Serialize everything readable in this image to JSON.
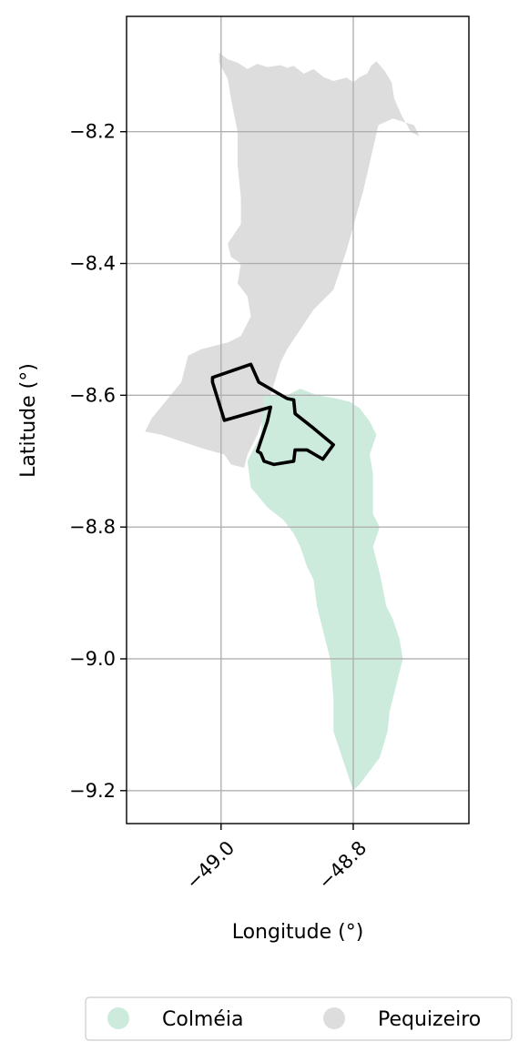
{
  "map": {
    "xlabel": "Longitude (°)",
    "ylabel": "Latitude (°)",
    "x_ticks": [
      {
        "value": -49.0,
        "label": "−49.0"
      },
      {
        "value": -48.8,
        "label": "−48.8"
      }
    ],
    "y_ticks": [
      {
        "value": -8.2,
        "label": "−8.2"
      },
      {
        "value": -8.4,
        "label": "−8.4"
      },
      {
        "value": -8.6,
        "label": "−8.6"
      },
      {
        "value": -8.8,
        "label": "−8.8"
      },
      {
        "value": -9.0,
        "label": "−9.0"
      },
      {
        "value": -9.2,
        "label": "−9.2"
      }
    ],
    "xlim": [
      -49.143,
      -48.625
    ],
    "ylim": [
      -9.25,
      -8.025
    ],
    "grid": true,
    "legend_position": "bottom-center",
    "legend": [
      {
        "label": "Colméia",
        "color": "#cdebdd"
      },
      {
        "label": "Pequizeiro",
        "color": "#dddddd"
      }
    ],
    "colors": {
      "colmeia": "#cdebdd",
      "pequizeiro": "#dddddd",
      "outline": "#000000",
      "grid": "#b0b0b0"
    }
  },
  "chart_data": {
    "type": "map",
    "xlabel": "Longitude (°)",
    "ylabel": "Latitude (°)",
    "xlim": [
      -49.143,
      -48.625
    ],
    "ylim": [
      -9.25,
      -8.025
    ],
    "series": [
      {
        "name": "Pequizeiro",
        "color": "#dddddd",
        "polygon": [
          [
            -49.003,
            -8.08
          ],
          [
            -48.99,
            -8.09
          ],
          [
            -48.975,
            -8.095
          ],
          [
            -48.96,
            -8.105
          ],
          [
            -48.945,
            -8.097
          ],
          [
            -48.93,
            -8.102
          ],
          [
            -48.91,
            -8.099
          ],
          [
            -48.9,
            -8.103
          ],
          [
            -48.89,
            -8.1
          ],
          [
            -48.875,
            -8.112
          ],
          [
            -48.86,
            -8.105
          ],
          [
            -48.845,
            -8.117
          ],
          [
            -48.83,
            -8.123
          ],
          [
            -48.81,
            -8.118
          ],
          [
            -48.8,
            -8.125
          ],
          [
            -48.79,
            -8.117
          ],
          [
            -48.779,
            -8.112
          ],
          [
            -48.773,
            -8.1
          ],
          [
            -48.765,
            -8.093
          ],
          [
            -48.753,
            -8.107
          ],
          [
            -48.742,
            -8.125
          ],
          [
            -48.738,
            -8.15
          ],
          [
            -48.727,
            -8.175
          ],
          [
            -48.713,
            -8.2
          ],
          [
            -48.7,
            -8.207
          ],
          [
            -48.708,
            -8.19
          ],
          [
            -48.74,
            -8.18
          ],
          [
            -48.762,
            -8.19
          ],
          [
            -48.785,
            -8.29
          ],
          [
            -48.81,
            -8.38
          ],
          [
            -48.83,
            -8.44
          ],
          [
            -48.86,
            -8.47
          ],
          [
            -48.88,
            -8.5
          ],
          [
            -48.9,
            -8.53
          ],
          [
            -48.91,
            -8.55
          ],
          [
            -48.925,
            -8.6
          ],
          [
            -48.935,
            -8.63
          ],
          [
            -48.945,
            -8.66
          ],
          [
            -48.96,
            -8.69
          ],
          [
            -48.965,
            -8.71
          ],
          [
            -48.985,
            -8.705
          ],
          [
            -48.995,
            -8.69
          ],
          [
            -49.03,
            -8.68
          ],
          [
            -49.06,
            -8.67
          ],
          [
            -49.09,
            -8.66
          ],
          [
            -49.115,
            -8.655
          ],
          [
            -49.105,
            -8.635
          ],
          [
            -49.06,
            -8.58
          ],
          [
            -49.05,
            -8.54
          ],
          [
            -49.03,
            -8.53
          ],
          [
            -49.01,
            -8.525
          ],
          [
            -48.99,
            -8.52
          ],
          [
            -48.97,
            -8.51
          ],
          [
            -48.955,
            -8.48
          ],
          [
            -48.96,
            -8.45
          ],
          [
            -48.975,
            -8.43
          ],
          [
            -48.97,
            -8.4
          ],
          [
            -48.985,
            -8.39
          ],
          [
            -48.99,
            -8.37
          ],
          [
            -48.97,
            -8.34
          ],
          [
            -48.97,
            -8.3
          ],
          [
            -48.975,
            -8.25
          ],
          [
            -48.975,
            -8.2
          ],
          [
            -48.985,
            -8.15
          ],
          [
            -48.99,
            -8.12
          ],
          [
            -49.003,
            -8.095
          ]
        ]
      },
      {
        "name": "Colméia",
        "color": "#cdebdd",
        "polygon": [
          [
            -48.935,
            -8.6
          ],
          [
            -48.9,
            -8.6
          ],
          [
            -48.88,
            -8.59
          ],
          [
            -48.855,
            -8.6
          ],
          [
            -48.825,
            -8.605
          ],
          [
            -48.805,
            -8.61
          ],
          [
            -48.79,
            -8.62
          ],
          [
            -48.775,
            -8.64
          ],
          [
            -48.765,
            -8.66
          ],
          [
            -48.775,
            -8.69
          ],
          [
            -48.77,
            -8.72
          ],
          [
            -48.77,
            -8.78
          ],
          [
            -48.76,
            -8.8
          ],
          [
            -48.77,
            -8.83
          ],
          [
            -48.76,
            -8.87
          ],
          [
            -48.75,
            -8.92
          ],
          [
            -48.74,
            -8.94
          ],
          [
            -48.73,
            -8.97
          ],
          [
            -48.725,
            -9.0
          ],
          [
            -48.735,
            -9.04
          ],
          [
            -48.745,
            -9.08
          ],
          [
            -48.748,
            -9.11
          ],
          [
            -48.76,
            -9.15
          ],
          [
            -48.775,
            -9.17
          ],
          [
            -48.79,
            -9.19
          ],
          [
            -48.8,
            -9.2
          ],
          [
            -48.81,
            -9.17
          ],
          [
            -48.82,
            -9.14
          ],
          [
            -48.83,
            -9.11
          ],
          [
            -48.83,
            -9.06
          ],
          [
            -48.835,
            -9.0
          ],
          [
            -48.845,
            -8.96
          ],
          [
            -48.855,
            -8.92
          ],
          [
            -48.86,
            -8.88
          ],
          [
            -48.87,
            -8.86
          ],
          [
            -48.88,
            -8.83
          ],
          [
            -48.89,
            -8.81
          ],
          [
            -48.905,
            -8.79
          ],
          [
            -48.93,
            -8.77
          ],
          [
            -48.955,
            -8.74
          ],
          [
            -48.96,
            -8.7
          ],
          [
            -48.94,
            -8.66
          ]
        ]
      }
    ],
    "outline": {
      "description": "study area boundary",
      "color": "#000000",
      "polygon": [
        [
          -49.013,
          -8.573
        ],
        [
          -48.955,
          -8.553
        ],
        [
          -48.943,
          -8.58
        ],
        [
          -48.9,
          -8.605
        ],
        [
          -48.89,
          -8.607
        ],
        [
          -48.888,
          -8.628
        ],
        [
          -48.86,
          -8.65
        ],
        [
          -48.83,
          -8.675
        ],
        [
          -48.846,
          -8.697
        ],
        [
          -48.858,
          -8.69
        ],
        [
          -48.87,
          -8.683
        ],
        [
          -48.888,
          -8.683
        ],
        [
          -48.89,
          -8.7
        ],
        [
          -48.92,
          -8.705
        ],
        [
          -48.935,
          -8.7
        ],
        [
          -48.94,
          -8.688
        ],
        [
          -48.945,
          -8.685
        ],
        [
          -48.93,
          -8.64
        ],
        [
          -48.925,
          -8.618
        ],
        [
          -48.995,
          -8.638
        ],
        [
          -49.013,
          -8.58
        ]
      ]
    }
  }
}
